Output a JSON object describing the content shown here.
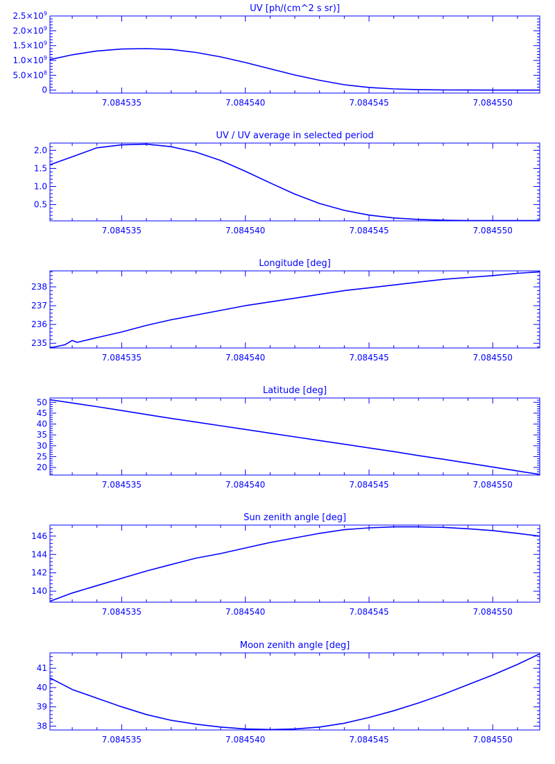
{
  "colors": {
    "ink": "#0000ff",
    "background": "#ffffff"
  },
  "x_ticks": [
    "7.084535",
    "7.084540",
    "7.084545",
    "7.084550"
  ],
  "chart_data": [
    {
      "type": "line",
      "title": "UV [ph/(cm^2 s sr)]",
      "grid": false,
      "xlim": [
        7.0845321,
        7.0845519
      ],
      "ylim": [
        -100000000,
        2500000000
      ],
      "x_ticks": [
        7.084535,
        7.08454,
        7.084545,
        7.08455
      ],
      "y_ticks": [
        {
          "value": 0,
          "label": "0",
          "mantissa": "0",
          "exp": ""
        },
        {
          "value": 500000000,
          "label": "5.0×10⁸",
          "mantissa": "5.0×10",
          "exp": "8"
        },
        {
          "value": 1000000000,
          "label": "1.0×10⁹",
          "mantissa": "1.0×10",
          "exp": "9"
        },
        {
          "value": 1500000000,
          "label": "1.5×10⁹",
          "mantissa": "1.5×10",
          "exp": "9"
        },
        {
          "value": 2000000000,
          "label": "2.0×10⁹",
          "mantissa": "2.0×10",
          "exp": "9"
        },
        {
          "value": 2500000000,
          "label": "2.5×10⁹",
          "mantissa": "2.5×10",
          "exp": "9"
        }
      ],
      "series": [
        {
          "x": [
            7.0845321,
            7.084533,
            7.084534,
            7.084535,
            7.084536,
            7.084537,
            7.084538,
            7.084539,
            7.08454,
            7.084541,
            7.084542,
            7.084543,
            7.084544,
            7.084545,
            7.084546,
            7.084547,
            7.084548,
            7.084549,
            7.08455,
            7.084551,
            7.0845519
          ],
          "y": [
            1030000000,
            1190000000,
            1320000000,
            1385000000,
            1400000000,
            1370000000,
            1270000000,
            1120000000,
            930000000,
            720000000,
            510000000,
            330000000,
            180000000,
            90000000,
            40000000,
            15000000,
            5000000,
            2000000,
            0,
            0,
            0
          ]
        }
      ]
    },
    {
      "type": "line",
      "title": "UV / UV average in selected period",
      "grid": false,
      "xlim": [
        7.0845321,
        7.0845519
      ],
      "ylim": [
        0.05,
        2.2
      ],
      "x_ticks": [
        7.084535,
        7.08454,
        7.084545,
        7.08455
      ],
      "y_ticks": [
        {
          "value": 0.5,
          "label": "0.5"
        },
        {
          "value": 1.0,
          "label": "1.0"
        },
        {
          "value": 1.5,
          "label": "1.5"
        },
        {
          "value": 2.0,
          "label": "2.0"
        }
      ],
      "series": [
        {
          "x": [
            7.0845321,
            7.084533,
            7.084534,
            7.084535,
            7.084536,
            7.084537,
            7.084538,
            7.084539,
            7.08454,
            7.084541,
            7.084542,
            7.084543,
            7.084544,
            7.084545,
            7.084546,
            7.084547,
            7.084548,
            7.084549,
            7.08455,
            7.084551,
            7.0845519
          ],
          "y": [
            1.6,
            1.82,
            2.07,
            2.15,
            2.17,
            2.1,
            1.95,
            1.72,
            1.42,
            1.1,
            0.79,
            0.53,
            0.34,
            0.21,
            0.13,
            0.09,
            0.07,
            0.06,
            0.06,
            0.06,
            0.06
          ]
        }
      ]
    },
    {
      "type": "line",
      "title": "Longitude [deg]",
      "grid": false,
      "xlim": [
        7.0845321,
        7.0845519
      ],
      "ylim": [
        234.75,
        238.85
      ],
      "x_ticks": [
        7.084535,
        7.08454,
        7.084545,
        7.08455
      ],
      "y_ticks": [
        {
          "value": 235,
          "label": "235"
        },
        {
          "value": 236,
          "label": "236"
        },
        {
          "value": 237,
          "label": "237"
        },
        {
          "value": 238,
          "label": "238"
        }
      ],
      "series": [
        {
          "x": [
            7.0845321,
            7.0845327,
            7.084533,
            7.0845332,
            7.084534,
            7.084535,
            7.084536,
            7.084537,
            7.084538,
            7.084539,
            7.08454,
            7.084541,
            7.084542,
            7.084543,
            7.084544,
            7.084545,
            7.084546,
            7.084547,
            7.084548,
            7.084549,
            7.08455,
            7.084551,
            7.0845519
          ],
          "y": [
            234.75,
            234.92,
            235.15,
            235.05,
            235.3,
            235.6,
            235.95,
            236.25,
            236.5,
            236.75,
            237.0,
            237.2,
            237.4,
            237.6,
            237.8,
            237.95,
            238.1,
            238.25,
            238.4,
            238.5,
            238.6,
            238.72,
            238.8
          ]
        }
      ]
    },
    {
      "type": "line",
      "title": "Latitude [deg]",
      "grid": false,
      "xlim": [
        7.0845321,
        7.0845519
      ],
      "ylim": [
        16.5,
        52
      ],
      "x_ticks": [
        7.084535,
        7.08454,
        7.084545,
        7.08455
      ],
      "y_ticks": [
        {
          "value": 20,
          "label": "20"
        },
        {
          "value": 25,
          "label": "25"
        },
        {
          "value": 30,
          "label": "30"
        },
        {
          "value": 35,
          "label": "35"
        },
        {
          "value": 40,
          "label": "40"
        },
        {
          "value": 45,
          "label": "45"
        },
        {
          "value": 50,
          "label": "50"
        }
      ],
      "series": [
        {
          "x": [
            7.0845321,
            7.084533,
            7.084534,
            7.084535,
            7.084536,
            7.084537,
            7.084538,
            7.084539,
            7.08454,
            7.084541,
            7.084542,
            7.084543,
            7.084544,
            7.084545,
            7.084546,
            7.084547,
            7.084548,
            7.084549,
            7.08455,
            7.084551,
            7.0845519
          ],
          "y": [
            51.2,
            49.7,
            48.0,
            46.2,
            44.4,
            42.6,
            40.9,
            39.2,
            37.5,
            35.8,
            34.1,
            32.4,
            30.7,
            29.0,
            27.3,
            25.5,
            23.8,
            22.0,
            20.2,
            18.4,
            16.8
          ]
        }
      ]
    },
    {
      "type": "line",
      "title": "Sun zenith angle [deg]",
      "grid": false,
      "xlim": [
        7.0845321,
        7.0845519
      ],
      "ylim": [
        138.8,
        147.2
      ],
      "x_ticks": [
        7.084535,
        7.08454,
        7.084545,
        7.08455
      ],
      "y_ticks": [
        {
          "value": 140,
          "label": "140"
        },
        {
          "value": 142,
          "label": "142"
        },
        {
          "value": 144,
          "label": "144"
        },
        {
          "value": 146,
          "label": "146"
        }
      ],
      "series": [
        {
          "x": [
            7.0845321,
            7.084533,
            7.084534,
            7.084535,
            7.084536,
            7.084537,
            7.084538,
            7.084539,
            7.08454,
            7.084541,
            7.084542,
            7.084543,
            7.084544,
            7.084545,
            7.084546,
            7.084547,
            7.084548,
            7.084549,
            7.08455,
            7.084551,
            7.0845519
          ],
          "y": [
            138.9,
            139.8,
            140.6,
            141.4,
            142.2,
            142.9,
            143.6,
            144.1,
            144.7,
            145.3,
            145.8,
            146.3,
            146.7,
            146.9,
            147.0,
            147.0,
            146.95,
            146.8,
            146.6,
            146.3,
            146.0
          ]
        }
      ]
    },
    {
      "type": "line",
      "title": "Moon zenith angle [deg]",
      "grid": false,
      "xlim": [
        7.0845321,
        7.0845519
      ],
      "ylim": [
        37.8,
        41.8
      ],
      "x_ticks": [
        7.084535,
        7.08454,
        7.084545,
        7.08455
      ],
      "y_ticks": [
        {
          "value": 38,
          "label": "38"
        },
        {
          "value": 39,
          "label": "39"
        },
        {
          "value": 40,
          "label": "40"
        },
        {
          "value": 41,
          "label": "41"
        }
      ],
      "series": [
        {
          "x": [
            7.0845321,
            7.084533,
            7.084534,
            7.084535,
            7.084536,
            7.084537,
            7.084538,
            7.084539,
            7.08454,
            7.084541,
            7.084542,
            7.084543,
            7.084544,
            7.084545,
            7.084546,
            7.084547,
            7.084548,
            7.084549,
            7.08455,
            7.084551,
            7.0845519
          ],
          "y": [
            40.5,
            39.9,
            39.45,
            39.0,
            38.6,
            38.3,
            38.1,
            37.95,
            37.85,
            37.82,
            37.85,
            37.95,
            38.15,
            38.45,
            38.8,
            39.2,
            39.65,
            40.15,
            40.65,
            41.2,
            41.75
          ]
        }
      ]
    }
  ]
}
